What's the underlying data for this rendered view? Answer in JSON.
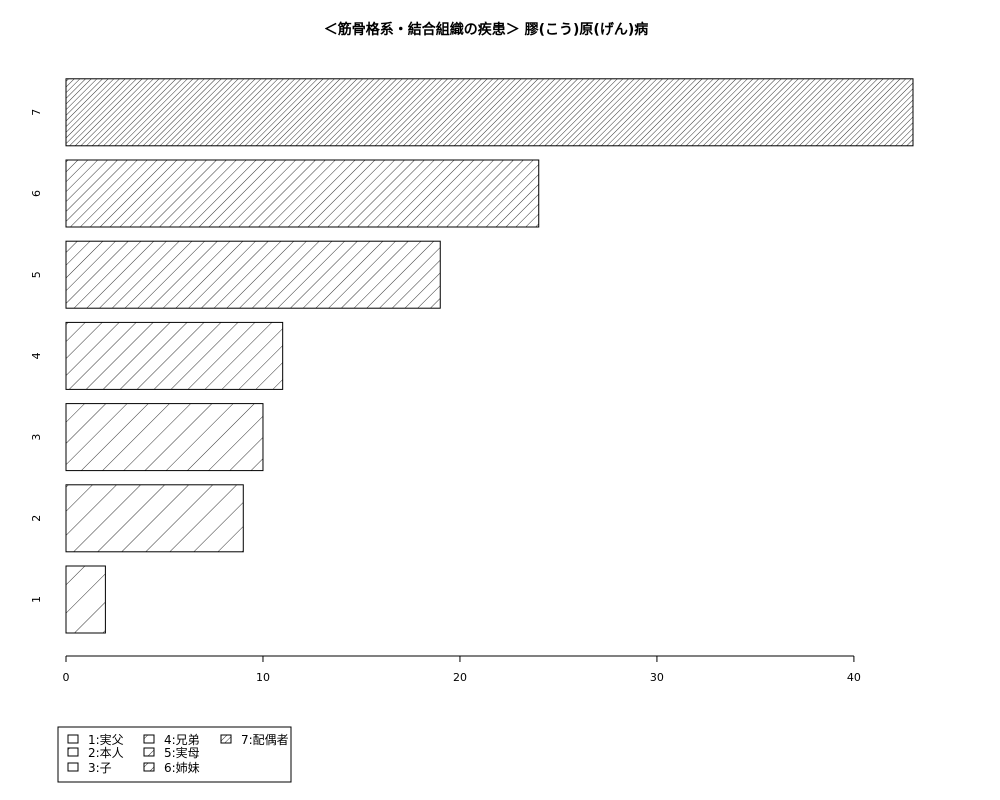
{
  "chart_data": {
    "type": "bar",
    "orientation": "horizontal",
    "title": "＜筋骨格系・結合組織の疾患＞ 膠(こう)原(げん)病",
    "xlabel": "",
    "ylabel": "",
    "categories": [
      "1",
      "2",
      "3",
      "4",
      "5",
      "6",
      "7"
    ],
    "values": [
      2,
      9,
      10,
      11,
      19,
      24,
      43
    ],
    "xlim": [
      0,
      43
    ],
    "x_ticks": [
      0,
      10,
      20,
      30,
      40
    ],
    "grid": false,
    "fill": "diagonal-hatch",
    "legend": {
      "placement": "bottom-left",
      "entries": [
        "1:実父",
        "2:本人",
        "3:子",
        "4:兄弟",
        "5:実母",
        "6:姉妹",
        "7:配偶者"
      ]
    }
  }
}
